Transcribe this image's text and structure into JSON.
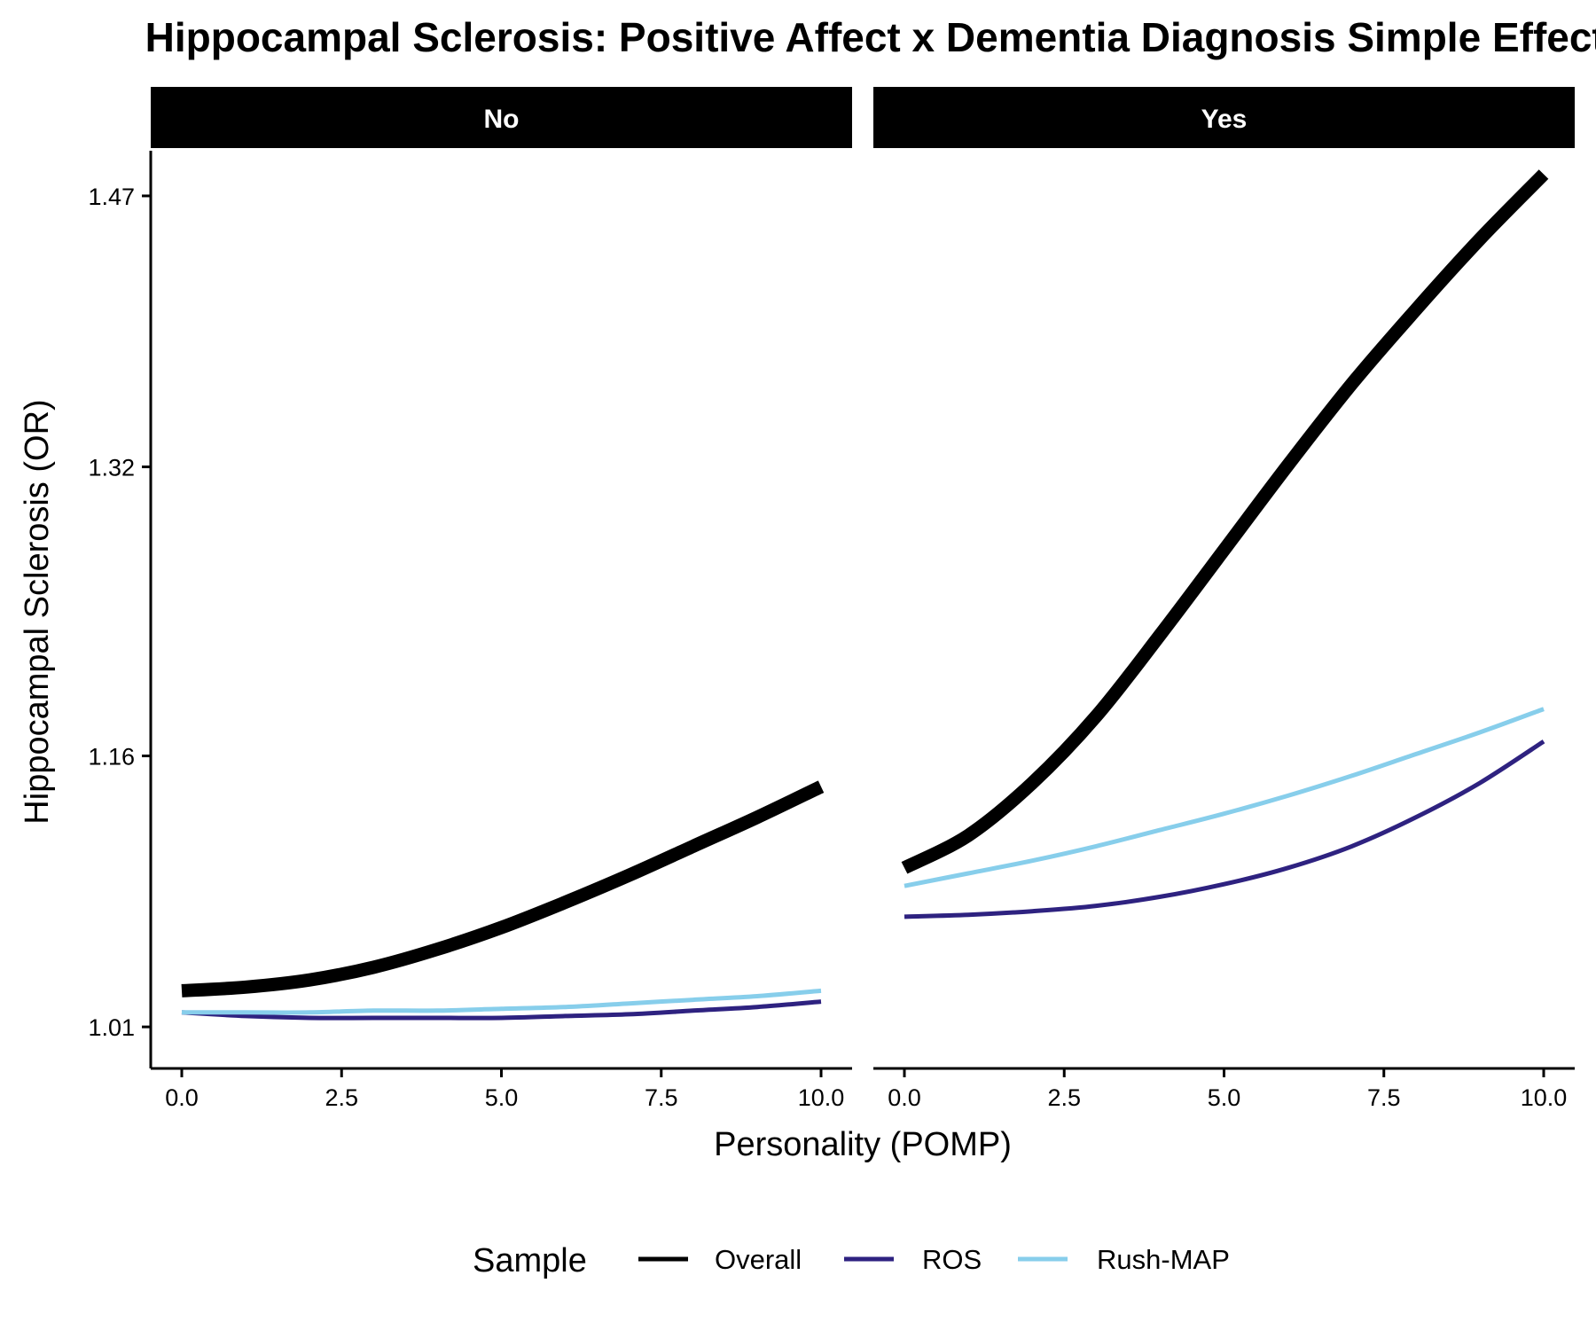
{
  "chart_data": {
    "type": "line",
    "title": "Hippocampal Sclerosis: Positive Affect x Dementia Diagnosis Simple Effects",
    "xlabel": "Personality (POMP)",
    "ylabel": "Hippocampal Sclerosis (OR)",
    "xlim": [
      -0.5,
      10.5
    ],
    "ylim": [
      0.987,
      1.495
    ],
    "xticks": [
      0.0,
      2.5,
      5.0,
      7.5,
      10.0
    ],
    "xtick_labels": [
      "0.0",
      "2.5",
      "5.0",
      "7.5",
      "10.0"
    ],
    "yticks": [
      1.01,
      1.16,
      1.32,
      1.47
    ],
    "ytick_labels": [
      "1.01",
      "1.16",
      "1.32",
      "1.47"
    ],
    "grid": false,
    "legend": {
      "title": "Sample",
      "position": "bottom",
      "entries": [
        "Overall",
        "ROS",
        "Rush-MAP"
      ]
    },
    "series_styles": [
      {
        "name": "Overall",
        "color": "#000000",
        "width": "thick"
      },
      {
        "name": "ROS",
        "color": "#2e2280",
        "width": "normal"
      },
      {
        "name": "Rush-MAP",
        "color": "#87ceeb",
        "width": "normal"
      }
    ],
    "facets": [
      {
        "label": "No",
        "x": [
          0,
          1,
          2,
          3,
          4,
          5,
          6,
          7,
          8,
          9,
          10
        ],
        "series": [
          {
            "name": "Overall",
            "values": [
              1.03,
              1.032,
              1.036,
              1.043,
              1.053,
              1.065,
              1.079,
              1.094,
              1.11,
              1.126,
              1.143
            ]
          },
          {
            "name": "ROS",
            "values": [
              1.018,
              1.016,
              1.015,
              1.015,
              1.015,
              1.015,
              1.016,
              1.017,
              1.019,
              1.021,
              1.024
            ]
          },
          {
            "name": "Rush-MAP",
            "values": [
              1.018,
              1.018,
              1.018,
              1.019,
              1.019,
              1.02,
              1.021,
              1.023,
              1.025,
              1.027,
              1.03
            ]
          }
        ]
      },
      {
        "label": "Yes",
        "x": [
          0,
          1,
          2,
          3,
          4,
          5,
          6,
          7,
          8,
          9,
          10
        ],
        "series": [
          {
            "name": "Overall",
            "values": [
              1.098,
              1.116,
              1.145,
              1.182,
              1.227,
              1.274,
              1.321,
              1.366,
              1.407,
              1.446,
              1.482
            ]
          },
          {
            "name": "ROS",
            "values": [
              1.071,
              1.072,
              1.074,
              1.077,
              1.082,
              1.089,
              1.098,
              1.11,
              1.126,
              1.145,
              1.168
            ]
          },
          {
            "name": "Rush-MAP",
            "values": [
              1.088,
              1.095,
              1.102,
              1.11,
              1.119,
              1.128,
              1.138,
              1.149,
              1.161,
              1.173,
              1.186
            ]
          }
        ]
      }
    ]
  }
}
